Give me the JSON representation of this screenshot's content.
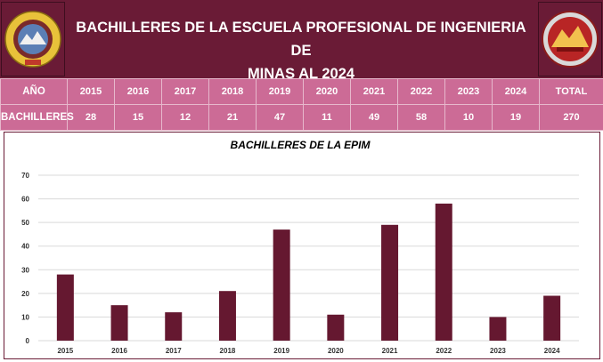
{
  "header": {
    "title_line1": "BACHILLERES DE LA ESCUELA PROFESIONAL DE INGENIERIA DE",
    "title_line2": "MINAS AL 2024",
    "logo_left_text": "UNIVERSIDAD NACIONAL DE MOQUEGUA",
    "logo_right_text": "INGENIERIA DE MINAS"
  },
  "summary": {
    "row1_label": "AÑO",
    "row2_label": "BACHILLERES",
    "years": [
      "2015",
      "2016",
      "2017",
      "2018",
      "2019",
      "2020",
      "2021",
      "2022",
      "2023",
      "2024"
    ],
    "counts": [
      "28",
      "15",
      "12",
      "21",
      "47",
      "11",
      "49",
      "58",
      "10",
      "19"
    ],
    "total_label": "TOTAL",
    "total_value": "270"
  },
  "colors": {
    "header_bg": "#6a1b36",
    "table_bg": "#cc6b96",
    "bar": "#651830"
  },
  "chart_data": {
    "type": "bar",
    "title": "BACHILLERES DE LA EPIM",
    "categories": [
      "2015",
      "2016",
      "2017",
      "2018",
      "2019",
      "2020",
      "2021",
      "2022",
      "2023",
      "2024"
    ],
    "values": [
      28,
      15,
      12,
      21,
      47,
      11,
      49,
      58,
      10,
      19
    ],
    "ylim": [
      0,
      70
    ],
    "yticks": [
      0,
      10,
      20,
      30,
      40,
      50,
      60,
      70
    ],
    "grid": true,
    "legend": "none"
  }
}
